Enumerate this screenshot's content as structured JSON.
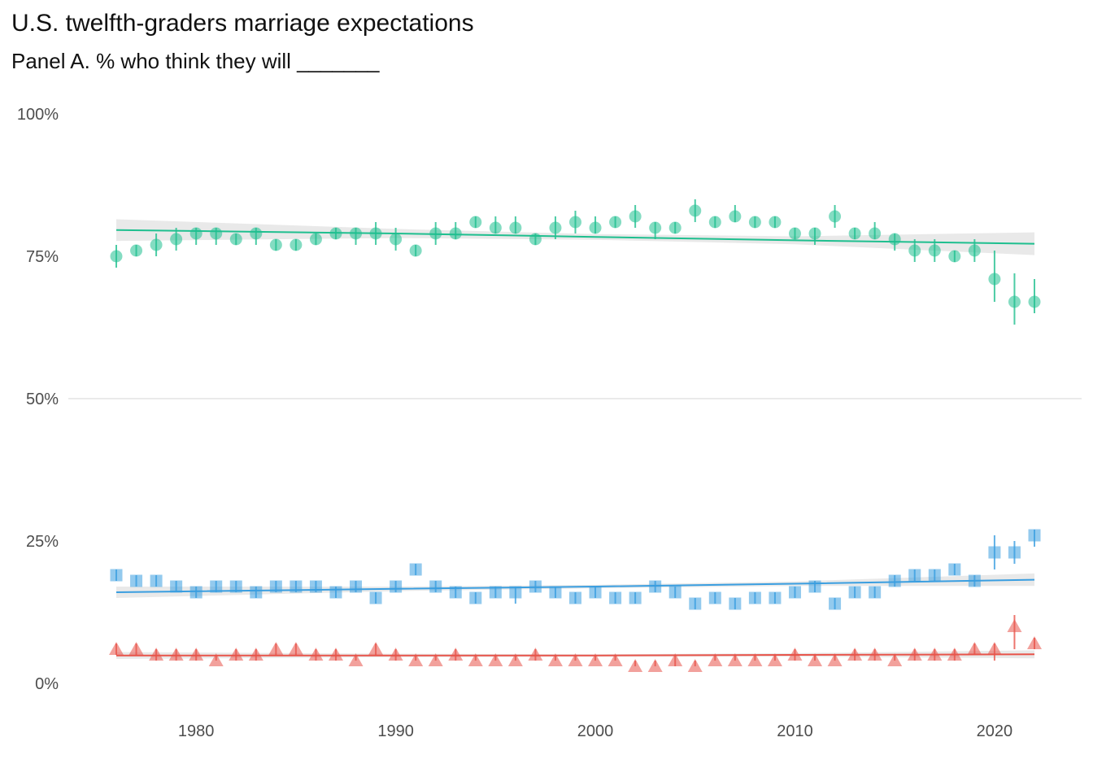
{
  "chart_data": {
    "type": "scatter",
    "title": "U.S. twelfth-graders marriage expectations",
    "subtitle": "Panel A. % who think they will _______",
    "xlabel": "",
    "ylabel": "",
    "xlim": [
      1974,
      2024
    ],
    "ylim": [
      0,
      100
    ],
    "x_ticks": [
      1980,
      1990,
      2000,
      2010,
      2020
    ],
    "y_ticks": [
      0,
      25,
      50,
      75,
      100
    ],
    "y_tick_labels": [
      "0%",
      "25%",
      "50%",
      "75%",
      "100%"
    ],
    "grid": "horizontal at 50% only",
    "legend": "none",
    "x": [
      1976,
      1977,
      1978,
      1979,
      1980,
      1981,
      1982,
      1983,
      1984,
      1985,
      1986,
      1987,
      1988,
      1989,
      1990,
      1991,
      1992,
      1993,
      1994,
      1995,
      1996,
      1997,
      1998,
      1999,
      2000,
      2001,
      2002,
      2003,
      2004,
      2005,
      2006,
      2007,
      2008,
      2009,
      2010,
      2011,
      2012,
      2013,
      2014,
      2015,
      2016,
      2017,
      2018,
      2019,
      2020,
      2021,
      2022
    ],
    "series": [
      {
        "color": "#1fbf8f",
        "marker": "circle",
        "values": [
          75,
          76,
          77,
          78,
          79,
          79,
          78,
          79,
          77,
          77,
          78,
          79,
          79,
          79,
          78,
          76,
          79,
          79,
          81,
          80,
          80,
          78,
          80,
          81,
          80,
          81,
          82,
          80,
          80,
          83,
          81,
          82,
          81,
          81,
          79,
          79,
          82,
          79,
          79,
          78,
          76,
          76,
          75,
          76,
          71,
          67,
          67
        ],
        "err_lo": [
          73,
          75,
          75,
          76,
          77,
          77,
          77,
          77,
          76,
          76,
          77,
          78,
          77,
          77,
          76,
          75,
          77,
          78,
          80,
          79,
          79,
          77,
          78,
          79,
          79,
          80,
          80,
          78,
          79,
          81,
          80,
          81,
          80,
          80,
          78,
          77,
          80,
          78,
          78,
          76,
          74,
          74,
          74,
          74,
          67,
          63,
          65
        ],
        "err_hi": [
          77,
          77,
          79,
          80,
          80,
          80,
          79,
          80,
          78,
          78,
          79,
          80,
          80,
          81,
          80,
          77,
          81,
          81,
          82,
          82,
          82,
          79,
          82,
          83,
          82,
          82,
          84,
          81,
          81,
          85,
          82,
          84,
          82,
          82,
          80,
          80,
          84,
          80,
          81,
          79,
          78,
          78,
          76,
          78,
          76,
          72,
          71
        ],
        "trend": [
          [
            1976,
            79.6
          ],
          [
            1990,
            79.0
          ],
          [
            2000,
            78.4
          ],
          [
            2010,
            77.8
          ],
          [
            2022,
            77.2
          ]
        ],
        "band_hi": [
          [
            1976,
            81.5
          ],
          [
            1990,
            79.8
          ],
          [
            2000,
            78.9
          ],
          [
            2010,
            78.5
          ],
          [
            2022,
            79.2
          ]
        ],
        "band_lo": [
          [
            1976,
            77.7
          ],
          [
            1990,
            78.2
          ],
          [
            2000,
            77.9
          ],
          [
            2010,
            77.1
          ],
          [
            2022,
            75.2
          ]
        ]
      },
      {
        "color": "#3a9ee0",
        "marker": "square",
        "values": [
          19,
          18,
          18,
          17,
          16,
          17,
          17,
          16,
          17,
          17,
          17,
          16,
          17,
          15,
          17,
          20,
          17,
          16,
          15,
          16,
          16,
          17,
          16,
          15,
          16,
          15,
          15,
          17,
          16,
          14,
          15,
          14,
          15,
          15,
          16,
          17,
          14,
          16,
          16,
          18,
          19,
          19,
          20,
          18,
          23,
          23,
          26
        ],
        "err_lo": [
          18,
          17,
          17,
          16,
          15,
          16,
          16,
          15,
          16,
          16,
          16,
          15,
          16,
          14,
          16,
          19,
          16,
          15,
          14,
          15,
          14,
          16,
          15,
          14,
          15,
          14,
          14,
          16,
          15,
          13,
          14,
          13,
          14,
          14,
          15,
          16,
          13,
          15,
          15,
          17,
          18,
          18,
          19,
          17,
          20,
          21,
          24
        ],
        "err_hi": [
          20,
          19,
          19,
          18,
          17,
          18,
          18,
          17,
          18,
          18,
          18,
          17,
          18,
          16,
          18,
          21,
          18,
          17,
          16,
          17,
          17,
          18,
          17,
          16,
          17,
          16,
          16,
          18,
          17,
          15,
          16,
          15,
          16,
          16,
          17,
          18,
          15,
          17,
          17,
          19,
          20,
          20,
          21,
          19,
          26,
          25,
          27
        ],
        "trend": [
          [
            1976,
            16.0
          ],
          [
            1990,
            16.6
          ],
          [
            2000,
            17.0
          ],
          [
            2010,
            17.5
          ],
          [
            2022,
            18.2
          ]
        ],
        "band_hi": [
          [
            1976,
            17.0
          ],
          [
            1990,
            17.0
          ],
          [
            2000,
            17.3
          ],
          [
            2010,
            17.9
          ],
          [
            2022,
            19.3
          ]
        ],
        "band_lo": [
          [
            1976,
            15.0
          ],
          [
            1990,
            16.2
          ],
          [
            2000,
            16.7
          ],
          [
            2010,
            17.1
          ],
          [
            2022,
            17.1
          ]
        ]
      },
      {
        "color": "#e8544a",
        "marker": "triangle",
        "values": [
          6,
          6,
          5,
          5,
          5,
          4,
          5,
          5,
          6,
          6,
          5,
          5,
          4,
          6,
          5,
          4,
          4,
          5,
          4,
          4,
          4,
          5,
          4,
          4,
          4,
          4,
          3,
          3,
          4,
          3,
          4,
          4,
          4,
          4,
          5,
          4,
          4,
          5,
          5,
          4,
          5,
          5,
          5,
          6,
          6,
          10,
          7
        ],
        "err_lo": [
          5,
          5,
          4,
          4,
          4,
          4,
          4,
          4,
          5,
          5,
          4,
          4,
          4,
          5,
          4,
          4,
          4,
          4,
          4,
          4,
          4,
          4,
          4,
          4,
          4,
          4,
          3,
          3,
          3,
          3,
          4,
          4,
          4,
          4,
          4,
          4,
          4,
          4,
          4,
          4,
          4,
          4,
          4,
          5,
          4,
          6,
          6
        ],
        "err_hi": [
          7,
          7,
          6,
          6,
          6,
          5,
          6,
          6,
          7,
          7,
          6,
          6,
          5,
          7,
          6,
          5,
          5,
          6,
          5,
          5,
          5,
          6,
          5,
          5,
          5,
          5,
          4,
          4,
          5,
          4,
          5,
          5,
          5,
          5,
          6,
          5,
          5,
          6,
          6,
          5,
          6,
          6,
          6,
          7,
          7,
          12,
          8
        ],
        "trend": [
          [
            1976,
            4.9
          ],
          [
            1990,
            4.9
          ],
          [
            2000,
            4.9
          ],
          [
            2010,
            5.0
          ],
          [
            2022,
            5.1
          ]
        ],
        "band_hi": [
          [
            1976,
            5.5
          ],
          [
            1990,
            5.2
          ],
          [
            2000,
            5.1
          ],
          [
            2010,
            5.3
          ],
          [
            2022,
            5.8
          ]
        ],
        "band_lo": [
          [
            1976,
            4.3
          ],
          [
            1990,
            4.6
          ],
          [
            2000,
            4.7
          ],
          [
            2010,
            4.7
          ],
          [
            2022,
            4.4
          ]
        ]
      }
    ]
  }
}
